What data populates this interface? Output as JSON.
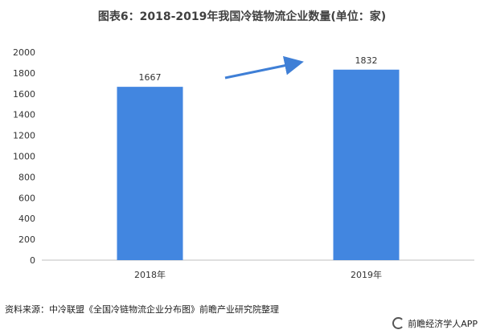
{
  "chart_data": {
    "type": "bar",
    "title": "图表6：2018-2019年我国冷链物流企业数量(单位：家)",
    "categories": [
      "2018年",
      "2019年"
    ],
    "values": [
      1667,
      1832
    ],
    "ylim": [
      0,
      2000
    ],
    "yticks": [
      0,
      200,
      400,
      600,
      800,
      1000,
      1200,
      1400,
      1600,
      1800,
      2000
    ],
    "grid": false,
    "bar_color": "#4286E0",
    "annotation": "upward arrow from 2018 bar to 2019 bar"
  },
  "footer": {
    "source": "资料来源：中冷联盟《全国冷链物流企业分布图》前瞻产业研究院整理",
    "brand": "前瞻经济学人APP"
  },
  "colors": {
    "bar": "#4286E0",
    "arrow": "#3F7FD6",
    "axis": "#bfbfbf",
    "text": "#333333"
  }
}
